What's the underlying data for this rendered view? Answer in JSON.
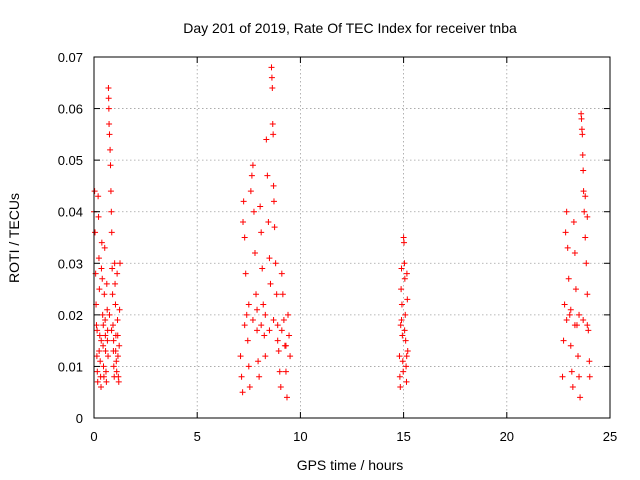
{
  "chart_data": {
    "type": "scatter",
    "title": "Day 201 of 2019, Rate Of TEC Index for receiver tnba",
    "xlabel": "GPS time / hours",
    "ylabel": "ROTI / TECUs",
    "xlim": [
      0,
      25
    ],
    "ylim": [
      0,
      0.07
    ],
    "xticks": [
      0,
      5,
      10,
      15,
      20,
      25
    ],
    "xtick_labels": [
      "0",
      "5",
      "10",
      "15",
      "20",
      "25"
    ],
    "yticks": [
      0,
      0.01,
      0.02,
      0.03,
      0.04,
      0.05,
      0.06,
      0.07
    ],
    "ytick_labels": [
      "0",
      "0.01",
      "0.02",
      "0.03",
      "0.04",
      "0.05",
      "0.06",
      "0.07"
    ],
    "grid": true,
    "marker": "plus",
    "color": "#ff0000",
    "series": [
      {
        "points": [
          [
            0.0,
            0.04
          ],
          [
            0.03,
            0.044
          ],
          [
            0.05,
            0.036
          ],
          [
            0.08,
            0.028
          ],
          [
            0.1,
            0.022
          ],
          [
            0.12,
            0.018
          ],
          [
            0.14,
            0.012
          ],
          [
            0.16,
            0.009
          ],
          [
            0.18,
            0.007
          ],
          [
            0.2,
            0.043
          ],
          [
            0.22,
            0.039
          ],
          [
            0.24,
            0.031
          ],
          [
            0.26,
            0.025
          ],
          [
            0.28,
            0.016
          ],
          [
            0.3,
            0.011
          ],
          [
            0.32,
            0.008
          ],
          [
            0.34,
            0.006
          ],
          [
            0.36,
            0.029
          ],
          [
            0.38,
            0.034
          ],
          [
            0.4,
            0.027
          ],
          [
            0.42,
            0.02
          ],
          [
            0.44,
            0.014
          ],
          [
            0.46,
            0.01
          ],
          [
            0.48,
            0.008
          ],
          [
            0.5,
            0.024
          ],
          [
            0.52,
            0.033
          ],
          [
            0.54,
            0.019
          ],
          [
            0.56,
            0.013
          ],
          [
            0.58,
            0.009
          ],
          [
            0.6,
            0.007
          ],
          [
            0.62,
            0.026
          ],
          [
            0.64,
            0.021
          ],
          [
            0.66,
            0.017
          ],
          [
            0.68,
            0.012
          ],
          [
            0.7,
            0.064
          ],
          [
            0.71,
            0.062
          ],
          [
            0.72,
            0.06
          ],
          [
            0.73,
            0.057
          ],
          [
            0.75,
            0.055
          ],
          [
            0.78,
            0.052
          ],
          [
            0.8,
            0.049
          ],
          [
            0.82,
            0.044
          ],
          [
            0.84,
            0.04
          ],
          [
            0.86,
            0.036
          ],
          [
            0.88,
            0.029
          ],
          [
            0.9,
            0.024
          ],
          [
            0.92,
            0.018
          ],
          [
            0.94,
            0.013
          ],
          [
            0.96,
            0.01
          ],
          [
            0.98,
            0.008
          ],
          [
            1.0,
            0.03
          ],
          [
            1.02,
            0.026
          ],
          [
            1.04,
            0.022
          ],
          [
            1.06,
            0.016
          ],
          [
            1.08,
            0.011
          ],
          [
            1.1,
            0.009
          ],
          [
            1.12,
            0.028
          ],
          [
            1.14,
            0.019
          ],
          [
            1.16,
            0.012
          ],
          [
            1.18,
            0.008
          ],
          [
            1.2,
            0.007
          ],
          [
            1.22,
            0.014
          ],
          [
            1.24,
            0.021
          ],
          [
            1.26,
            0.03
          ],
          [
            0.15,
            0.017
          ],
          [
            0.25,
            0.013
          ],
          [
            0.35,
            0.015
          ],
          [
            0.45,
            0.018
          ],
          [
            0.55,
            0.016
          ],
          [
            0.65,
            0.015
          ],
          [
            0.75,
            0.02
          ],
          [
            0.85,
            0.017
          ],
          [
            0.95,
            0.015
          ],
          [
            1.05,
            0.013
          ],
          [
            1.15,
            0.016
          ]
        ]
      },
      {
        "points": [
          [
            7.1,
            0.012
          ],
          [
            7.15,
            0.008
          ],
          [
            7.2,
            0.005
          ],
          [
            7.22,
            0.038
          ],
          [
            7.25,
            0.042
          ],
          [
            7.3,
            0.035
          ],
          [
            7.35,
            0.028
          ],
          [
            7.4,
            0.02
          ],
          [
            7.45,
            0.015
          ],
          [
            7.5,
            0.01
          ],
          [
            7.55,
            0.006
          ],
          [
            7.6,
            0.044
          ],
          [
            7.65,
            0.047
          ],
          [
            7.7,
            0.049
          ],
          [
            7.75,
            0.04
          ],
          [
            7.8,
            0.032
          ],
          [
            7.85,
            0.024
          ],
          [
            7.9,
            0.017
          ],
          [
            7.95,
            0.011
          ],
          [
            8.0,
            0.008
          ],
          [
            8.05,
            0.041
          ],
          [
            8.1,
            0.036
          ],
          [
            8.15,
            0.029
          ],
          [
            8.2,
            0.022
          ],
          [
            8.25,
            0.016
          ],
          [
            8.3,
            0.012
          ],
          [
            8.35,
            0.054
          ],
          [
            8.4,
            0.047
          ],
          [
            8.45,
            0.038
          ],
          [
            8.5,
            0.031
          ],
          [
            8.55,
            0.026
          ],
          [
            8.6,
            0.068
          ],
          [
            8.62,
            0.066
          ],
          [
            8.64,
            0.064
          ],
          [
            8.66,
            0.057
          ],
          [
            8.68,
            0.055
          ],
          [
            8.7,
            0.045
          ],
          [
            8.72,
            0.042
          ],
          [
            8.75,
            0.037
          ],
          [
            8.8,
            0.03
          ],
          [
            8.85,
            0.024
          ],
          [
            8.9,
            0.018
          ],
          [
            8.95,
            0.013
          ],
          [
            9.0,
            0.009
          ],
          [
            9.05,
            0.006
          ],
          [
            9.1,
            0.028
          ],
          [
            9.15,
            0.024
          ],
          [
            9.2,
            0.019
          ],
          [
            9.25,
            0.014
          ],
          [
            9.3,
            0.009
          ],
          [
            9.35,
            0.004
          ],
          [
            9.4,
            0.02
          ],
          [
            9.45,
            0.016
          ],
          [
            9.5,
            0.012
          ],
          [
            7.3,
            0.018
          ],
          [
            7.5,
            0.022
          ],
          [
            7.7,
            0.019
          ],
          [
            7.9,
            0.021
          ],
          [
            8.1,
            0.018
          ],
          [
            8.3,
            0.02
          ],
          [
            8.5,
            0.017
          ],
          [
            8.7,
            0.019
          ],
          [
            8.9,
            0.015
          ],
          [
            9.1,
            0.017
          ],
          [
            9.3,
            0.014
          ]
        ]
      },
      {
        "points": [
          [
            14.8,
            0.012
          ],
          [
            14.82,
            0.008
          ],
          [
            14.84,
            0.006
          ],
          [
            14.86,
            0.018
          ],
          [
            14.88,
            0.025
          ],
          [
            14.9,
            0.029
          ],
          [
            14.92,
            0.022
          ],
          [
            14.94,
            0.016
          ],
          [
            14.96,
            0.011
          ],
          [
            14.98,
            0.009
          ],
          [
            15.0,
            0.035
          ],
          [
            15.02,
            0.034
          ],
          [
            15.04,
            0.03
          ],
          [
            15.06,
            0.027
          ],
          [
            15.08,
            0.02
          ],
          [
            15.1,
            0.015
          ],
          [
            15.12,
            0.01
          ],
          [
            15.14,
            0.007
          ],
          [
            15.16,
            0.028
          ],
          [
            15.18,
            0.023
          ],
          [
            15.2,
            0.013
          ],
          [
            14.9,
            0.019
          ],
          [
            15.05,
            0.017
          ],
          [
            15.15,
            0.012
          ]
        ]
      },
      {
        "points": [
          [
            22.7,
            0.008
          ],
          [
            22.75,
            0.015
          ],
          [
            22.8,
            0.022
          ],
          [
            22.85,
            0.036
          ],
          [
            22.9,
            0.04
          ],
          [
            22.95,
            0.033
          ],
          [
            23.0,
            0.027
          ],
          [
            23.05,
            0.02
          ],
          [
            23.1,
            0.014
          ],
          [
            23.15,
            0.009
          ],
          [
            23.2,
            0.006
          ],
          [
            23.25,
            0.038
          ],
          [
            23.3,
            0.032
          ],
          [
            23.35,
            0.025
          ],
          [
            23.4,
            0.018
          ],
          [
            23.45,
            0.012
          ],
          [
            23.5,
            0.008
          ],
          [
            23.55,
            0.004
          ],
          [
            23.6,
            0.059
          ],
          [
            23.62,
            0.058
          ],
          [
            23.64,
            0.056
          ],
          [
            23.66,
            0.055
          ],
          [
            23.68,
            0.051
          ],
          [
            23.7,
            0.048
          ],
          [
            23.72,
            0.044
          ],
          [
            23.75,
            0.04
          ],
          [
            23.8,
            0.035
          ],
          [
            23.85,
            0.03
          ],
          [
            23.9,
            0.024
          ],
          [
            23.95,
            0.017
          ],
          [
            24.0,
            0.011
          ],
          [
            24.02,
            0.008
          ],
          [
            23.8,
            0.043
          ],
          [
            23.9,
            0.039
          ],
          [
            22.9,
            0.019
          ],
          [
            23.1,
            0.021
          ],
          [
            23.3,
            0.018
          ],
          [
            23.5,
            0.02
          ],
          [
            23.7,
            0.019
          ],
          [
            23.9,
            0.018
          ]
        ]
      }
    ]
  }
}
